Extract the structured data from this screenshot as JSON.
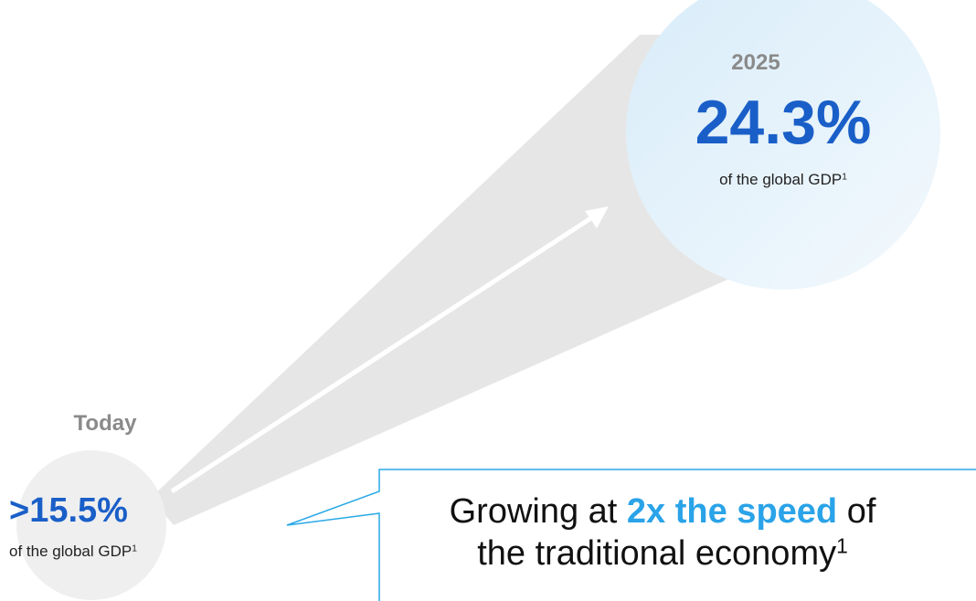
{
  "today": {
    "label": "Today",
    "value": ">15.5%",
    "description": "of the global GDP",
    "footnote": "1"
  },
  "future": {
    "label": "2025",
    "value": "24.3%",
    "description": "of the global GDP",
    "footnote": "1"
  },
  "callout": {
    "prefix": "Growing at ",
    "highlight": "2x the speed",
    "middle": " of",
    "line2": "the traditional economy",
    "footnote": "1"
  },
  "colors": {
    "value_blue": "#1a5fc8",
    "highlight_blue": "#2aa3e8",
    "label_gray": "#8a8a8a",
    "beam_gray": "#e6e6e6",
    "callout_border": "#29a9e6"
  }
}
